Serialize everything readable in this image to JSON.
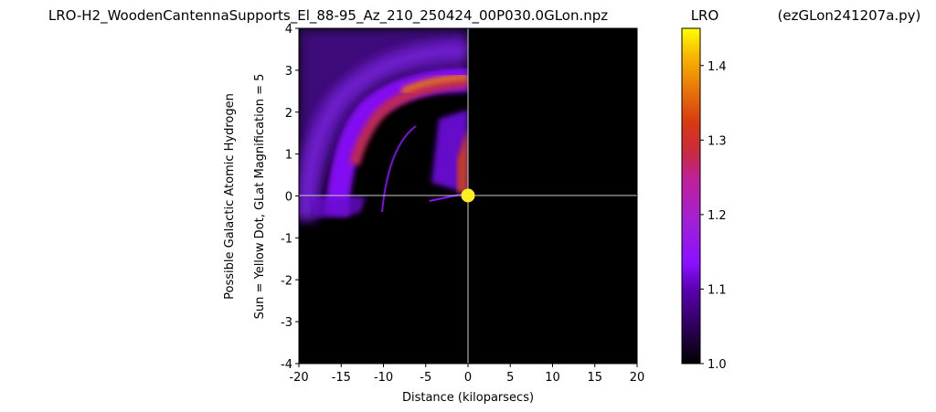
{
  "chart_data": {
    "type": "heatmap",
    "title": "LRO-H2_WoodenCantennaSupports_El_88-95_Az_210_250424_00P030.0GLon.npz",
    "colorbar_title": "LRO",
    "script_name": "(ezGLon241207a.py)",
    "xlabel": "Distance (kiloparsecs)",
    "ylabel": "Possible Galactic Atomic Hydrogen",
    "ylabel2": "Sun = Yellow Dot, GLat Magnification = 5",
    "xlim": [
      -20,
      20
    ],
    "ylim": [
      -4,
      4
    ],
    "x_ticks": [
      "-20",
      "-15",
      "-10",
      "-5",
      "0",
      "5",
      "10",
      "15",
      "20"
    ],
    "y_ticks": [
      "4",
      "3",
      "2",
      "1",
      "0",
      "-1",
      "-2",
      "-3",
      "-4"
    ],
    "colorbar": {
      "range": [
        1.0,
        1.45
      ],
      "ticks": [
        "1.0",
        "1.1",
        "1.2",
        "1.3",
        "1.4"
      ],
      "colormap": "gnuplot"
    },
    "sun": {
      "x": 0,
      "y": 0,
      "color": "#ffee22"
    },
    "crosshair": {
      "x": 0,
      "y": 0,
      "color": "#cccccc"
    },
    "background_color": "#000000",
    "features": [
      {
        "kind": "arc",
        "cx": 0,
        "cy": 0,
        "rx_kpc": 12.5,
        "ry": 2.2,
        "start_deg": 100,
        "end_deg": 178,
        "value": 1.18
      },
      {
        "kind": "arc",
        "cx": 0,
        "cy": 0,
        "rx_kpc": 10.5,
        "ry": 2.6,
        "start_deg": 95,
        "end_deg": 170,
        "value": 1.24
      }
    ]
  }
}
